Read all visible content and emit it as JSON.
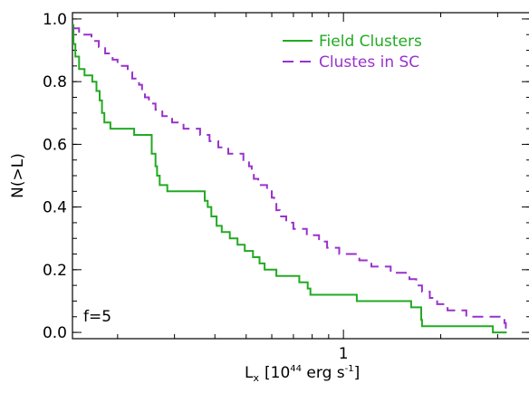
{
  "chart_data": {
    "type": "line",
    "title": "",
    "xlabel": {
      "main": "L",
      "sub": "x",
      "bracket_open": "[",
      "base": "10",
      "exp": "44",
      "unit": " erg s",
      "unit_exp": "-1",
      "bracket_close": "]"
    },
    "ylabel": "N(>L)",
    "xscale": "log",
    "xlim": [
      0.145,
      3.8
    ],
    "ylim": [
      -0.02,
      1.02
    ],
    "x_major_ticks": [
      {
        "value": 1,
        "label": "1"
      }
    ],
    "y_ticks": [
      {
        "value": 0.0,
        "label": "0.0"
      },
      {
        "value": 0.2,
        "label": "0.2"
      },
      {
        "value": 0.4,
        "label": "0.4"
      },
      {
        "value": 0.6,
        "label": "0.6"
      },
      {
        "value": 0.8,
        "label": "0.8"
      },
      {
        "value": 1.0,
        "label": "1.0"
      }
    ],
    "grid": false,
    "legend_position": "top-right",
    "annotation": "f=5",
    "series": [
      {
        "name": "Field Clusters",
        "color": "#22aa22",
        "dash": "solid",
        "points": [
          [
            0.145,
            0.98
          ],
          [
            0.146,
            0.92
          ],
          [
            0.148,
            0.88
          ],
          [
            0.152,
            0.84
          ],
          [
            0.158,
            0.82
          ],
          [
            0.167,
            0.8
          ],
          [
            0.172,
            0.77
          ],
          [
            0.176,
            0.74
          ],
          [
            0.179,
            0.7
          ],
          [
            0.182,
            0.67
          ],
          [
            0.19,
            0.65
          ],
          [
            0.225,
            0.63
          ],
          [
            0.255,
            0.57
          ],
          [
            0.262,
            0.53
          ],
          [
            0.265,
            0.5
          ],
          [
            0.27,
            0.47
          ],
          [
            0.285,
            0.45
          ],
          [
            0.372,
            0.42
          ],
          [
            0.38,
            0.4
          ],
          [
            0.39,
            0.37
          ],
          [
            0.405,
            0.34
          ],
          [
            0.42,
            0.32
          ],
          [
            0.445,
            0.3
          ],
          [
            0.47,
            0.28
          ],
          [
            0.495,
            0.26
          ],
          [
            0.525,
            0.24
          ],
          [
            0.55,
            0.22
          ],
          [
            0.57,
            0.2
          ],
          [
            0.62,
            0.18
          ],
          [
            0.73,
            0.16
          ],
          [
            0.775,
            0.14
          ],
          [
            0.79,
            0.12
          ],
          [
            1.1,
            0.1
          ],
          [
            1.62,
            0.08
          ],
          [
            1.74,
            0.04
          ],
          [
            1.75,
            0.02
          ],
          [
            2.9,
            0.0
          ],
          [
            3.2,
            0.0
          ]
        ]
      },
      {
        "name": "Clustes in SC",
        "color": "#9932cc",
        "dash": "dashed",
        "points": [
          [
            0.145,
            0.97
          ],
          [
            0.152,
            0.95
          ],
          [
            0.166,
            0.93
          ],
          [
            0.175,
            0.91
          ],
          [
            0.183,
            0.89
          ],
          [
            0.193,
            0.87
          ],
          [
            0.2,
            0.85
          ],
          [
            0.215,
            0.83
          ],
          [
            0.222,
            0.81
          ],
          [
            0.233,
            0.79
          ],
          [
            0.238,
            0.77
          ],
          [
            0.243,
            0.75
          ],
          [
            0.25,
            0.73
          ],
          [
            0.262,
            0.71
          ],
          [
            0.275,
            0.69
          ],
          [
            0.295,
            0.67
          ],
          [
            0.32,
            0.65
          ],
          [
            0.36,
            0.63
          ],
          [
            0.385,
            0.61
          ],
          [
            0.41,
            0.59
          ],
          [
            0.44,
            0.57
          ],
          [
            0.49,
            0.55
          ],
          [
            0.51,
            0.53
          ],
          [
            0.52,
            0.51
          ],
          [
            0.528,
            0.49
          ],
          [
            0.545,
            0.47
          ],
          [
            0.58,
            0.45
          ],
          [
            0.6,
            0.43
          ],
          [
            0.61,
            0.41
          ],
          [
            0.62,
            0.39
          ],
          [
            0.635,
            0.37
          ],
          [
            0.665,
            0.35
          ],
          [
            0.7,
            0.33
          ],
          [
            0.77,
            0.31
          ],
          [
            0.84,
            0.29
          ],
          [
            0.89,
            0.27
          ],
          [
            0.97,
            0.25
          ],
          [
            1.12,
            0.23
          ],
          [
            1.22,
            0.21
          ],
          [
            1.4,
            0.19
          ],
          [
            1.6,
            0.17
          ],
          [
            1.68,
            0.15
          ],
          [
            1.75,
            0.13
          ],
          [
            1.85,
            0.11
          ],
          [
            1.95,
            0.09
          ],
          [
            2.1,
            0.07
          ],
          [
            2.4,
            0.05
          ],
          [
            3.15,
            0.03
          ],
          [
            3.18,
            0.01
          ],
          [
            3.2,
            0.0
          ]
        ]
      }
    ]
  }
}
